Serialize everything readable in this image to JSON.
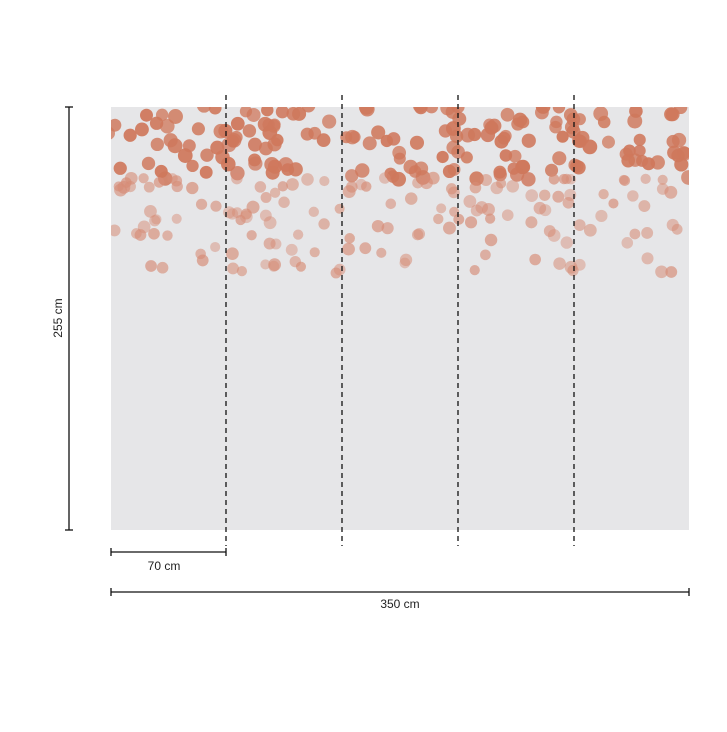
{
  "dimensions": {
    "height": "255 cm",
    "panel_width": "70 cm",
    "total_width": "350 cm"
  }
}
